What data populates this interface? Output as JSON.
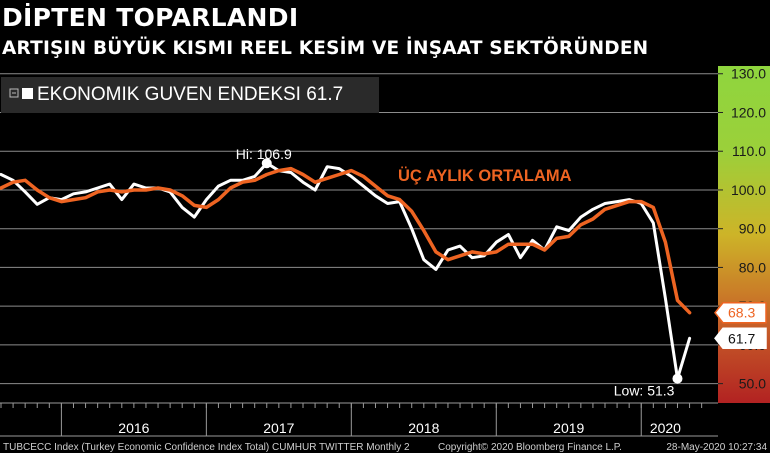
{
  "title": "DİPTEN TOPARLANDI",
  "subtitle": "ARTIŞIN BÜYÜK KISMI REEL KESİM VE İNŞAAT SEKTÖRÜNDEN",
  "footer": {
    "left": "TUBCECC Index (Turkey Economic Confidence Index Total) CUMHUR TWITTER  Monthly 2",
    "center": "Copyright© 2020 Bloomberg Finance L.P.",
    "right": "28-May-2020 10:27:34"
  },
  "chart_data": {
    "type": "line",
    "legend": {
      "label": "EKONOMIK GUVEN ENDEKSI",
      "value": "61.7",
      "placement": "top-left"
    },
    "y_axis": {
      "ticks": [
        "50.0",
        "60.0",
        "70.0",
        "80.0",
        "90.0",
        "100.0",
        "110.0",
        "120.0",
        "130.0"
      ],
      "range": [
        45,
        132
      ],
      "side": "right",
      "gradient_colors": [
        "#b22222",
        "#c86428",
        "#cdb428",
        "#9bd03a",
        "#8fd53e"
      ]
    },
    "x_axis": {
      "ticks": [
        "2016",
        "2017",
        "2018",
        "2019",
        "2020"
      ]
    },
    "grid": true,
    "series": [
      {
        "color": "#ffffff",
        "values": [
          {
            "x": "2015-08",
            "y": 104.0
          },
          {
            "x": "2015-09",
            "y": 102.5
          },
          {
            "x": "2015-10",
            "y": 99.5
          },
          {
            "x": "2015-11",
            "y": 96.3
          },
          {
            "x": "2015-12",
            "y": 98.0
          },
          {
            "x": "2016-01",
            "y": 97.5
          },
          {
            "x": "2016-02",
            "y": 99.0
          },
          {
            "x": "2016-03",
            "y": 99.5
          },
          {
            "x": "2016-04",
            "y": 100.5
          },
          {
            "x": "2016-05",
            "y": 101.5
          },
          {
            "x": "2016-06",
            "y": 97.5
          },
          {
            "x": "2016-07",
            "y": 101.5
          },
          {
            "x": "2016-08",
            "y": 100.5
          },
          {
            "x": "2016-09",
            "y": 100.5
          },
          {
            "x": "2016-10",
            "y": 99.5
          },
          {
            "x": "2016-11",
            "y": 95.5
          },
          {
            "x": "2016-12",
            "y": 93.0
          },
          {
            "x": "2017-01",
            "y": 97.5
          },
          {
            "x": "2017-02",
            "y": 101.0
          },
          {
            "x": "2017-03",
            "y": 102.5
          },
          {
            "x": "2017-04",
            "y": 102.5
          },
          {
            "x": "2017-05",
            "y": 103.5
          },
          {
            "x": "2017-06",
            "y": 106.9
          },
          {
            "x": "2017-07",
            "y": 105.0
          },
          {
            "x": "2017-08",
            "y": 104.5
          },
          {
            "x": "2017-09",
            "y": 102.0
          },
          {
            "x": "2017-10",
            "y": 100.0
          },
          {
            "x": "2017-11",
            "y": 106.0
          },
          {
            "x": "2017-12",
            "y": 105.5
          },
          {
            "x": "2018-01",
            "y": 103.5
          },
          {
            "x": "2018-02",
            "y": 101.0
          },
          {
            "x": "2018-03",
            "y": 98.5
          },
          {
            "x": "2018-04",
            "y": 96.5
          },
          {
            "x": "2018-05",
            "y": 97.0
          },
          {
            "x": "2018-06",
            "y": 90.0
          },
          {
            "x": "2018-07",
            "y": 82.0
          },
          {
            "x": "2018-08",
            "y": 79.5
          },
          {
            "x": "2018-09",
            "y": 84.5
          },
          {
            "x": "2018-10",
            "y": 85.5
          },
          {
            "x": "2018-11",
            "y": 82.5
          },
          {
            "x": "2018-12",
            "y": 83.0
          },
          {
            "x": "2019-01",
            "y": 86.5
          },
          {
            "x": "2019-02",
            "y": 88.5
          },
          {
            "x": "2019-03",
            "y": 82.5
          },
          {
            "x": "2019-04",
            "y": 87.0
          },
          {
            "x": "2019-05",
            "y": 84.5
          },
          {
            "x": "2019-06",
            "y": 90.5
          },
          {
            "x": "2019-07",
            "y": 89.5
          },
          {
            "x": "2019-08",
            "y": 93.0
          },
          {
            "x": "2019-09",
            "y": 95.0
          },
          {
            "x": "2019-10",
            "y": 96.5
          },
          {
            "x": "2019-11",
            "y": 97.0
          },
          {
            "x": "2019-12",
            "y": 97.5
          },
          {
            "x": "2020-01",
            "y": 96.5
          },
          {
            "x": "2020-02",
            "y": 91.5
          },
          {
            "x": "2020-03",
            "y": 72.0
          },
          {
            "x": "2020-04",
            "y": 51.3
          },
          {
            "x": "2020-05",
            "y": 61.7
          }
        ]
      },
      {
        "name": "ÜÇ AYLIK ORTALAMA",
        "color": "#ee6422",
        "values": [
          {
            "x": "2015-08",
            "y": 100.5
          },
          {
            "x": "2015-09",
            "y": 102.0
          },
          {
            "x": "2015-10",
            "y": 102.5
          },
          {
            "x": "2015-11",
            "y": 100.0
          },
          {
            "x": "2015-12",
            "y": 98.0
          },
          {
            "x": "2016-01",
            "y": 97.0
          },
          {
            "x": "2016-02",
            "y": 97.5
          },
          {
            "x": "2016-03",
            "y": 98.0
          },
          {
            "x": "2016-04",
            "y": 99.5
          },
          {
            "x": "2016-05",
            "y": 100.0
          },
          {
            "x": "2016-06",
            "y": 99.5
          },
          {
            "x": "2016-07",
            "y": 100.0
          },
          {
            "x": "2016-08",
            "y": 100.0
          },
          {
            "x": "2016-09",
            "y": 100.5
          },
          {
            "x": "2016-10",
            "y": 100.0
          },
          {
            "x": "2016-11",
            "y": 98.5
          },
          {
            "x": "2016-12",
            "y": 96.0
          },
          {
            "x": "2017-01",
            "y": 95.5
          },
          {
            "x": "2017-02",
            "y": 97.5
          },
          {
            "x": "2017-03",
            "y": 100.5
          },
          {
            "x": "2017-04",
            "y": 102.0
          },
          {
            "x": "2017-05",
            "y": 102.5
          },
          {
            "x": "2017-06",
            "y": 104.0
          },
          {
            "x": "2017-07",
            "y": 105.0
          },
          {
            "x": "2017-08",
            "y": 105.5
          },
          {
            "x": "2017-09",
            "y": 104.0
          },
          {
            "x": "2017-10",
            "y": 102.0
          },
          {
            "x": "2017-11",
            "y": 103.0
          },
          {
            "x": "2017-12",
            "y": 104.0
          },
          {
            "x": "2018-01",
            "y": 105.0
          },
          {
            "x": "2018-02",
            "y": 103.5
          },
          {
            "x": "2018-03",
            "y": 101.0
          },
          {
            "x": "2018-04",
            "y": 98.5
          },
          {
            "x": "2018-05",
            "y": 97.5
          },
          {
            "x": "2018-06",
            "y": 94.5
          },
          {
            "x": "2018-07",
            "y": 89.5
          },
          {
            "x": "2018-08",
            "y": 84.0
          },
          {
            "x": "2018-09",
            "y": 82.0
          },
          {
            "x": "2018-10",
            "y": 83.0
          },
          {
            "x": "2018-11",
            "y": 84.0
          },
          {
            "x": "2018-12",
            "y": 83.5
          },
          {
            "x": "2019-01",
            "y": 84.0
          },
          {
            "x": "2019-02",
            "y": 86.0
          },
          {
            "x": "2019-03",
            "y": 86.0
          },
          {
            "x": "2019-04",
            "y": 86.0
          },
          {
            "x": "2019-05",
            "y": 84.5
          },
          {
            "x": "2019-06",
            "y": 87.5
          },
          {
            "x": "2019-07",
            "y": 88.0
          },
          {
            "x": "2019-08",
            "y": 91.0
          },
          {
            "x": "2019-09",
            "y": 92.5
          },
          {
            "x": "2019-10",
            "y": 95.0
          },
          {
            "x": "2019-11",
            "y": 96.0
          },
          {
            "x": "2019-12",
            "y": 97.0
          },
          {
            "x": "2020-01",
            "y": 97.0
          },
          {
            "x": "2020-02",
            "y": 95.5
          },
          {
            "x": "2020-03",
            "y": 86.5
          },
          {
            "x": "2020-04",
            "y": 71.5
          },
          {
            "x": "2020-05",
            "y": 68.3
          }
        ]
      }
    ],
    "annotations": [
      {
        "text": "Hi: 106.9",
        "x": "2017-06",
        "y": 106.9,
        "marker": true
      },
      {
        "text": "Low: 51.3",
        "x": "2020-04",
        "y": 51.3,
        "marker": true
      }
    ],
    "end_labels": [
      {
        "series": 1,
        "text": "68.3",
        "color": "#ee6422"
      },
      {
        "series": 0,
        "text": "61.7",
        "color": "#ffffff"
      }
    ]
  }
}
